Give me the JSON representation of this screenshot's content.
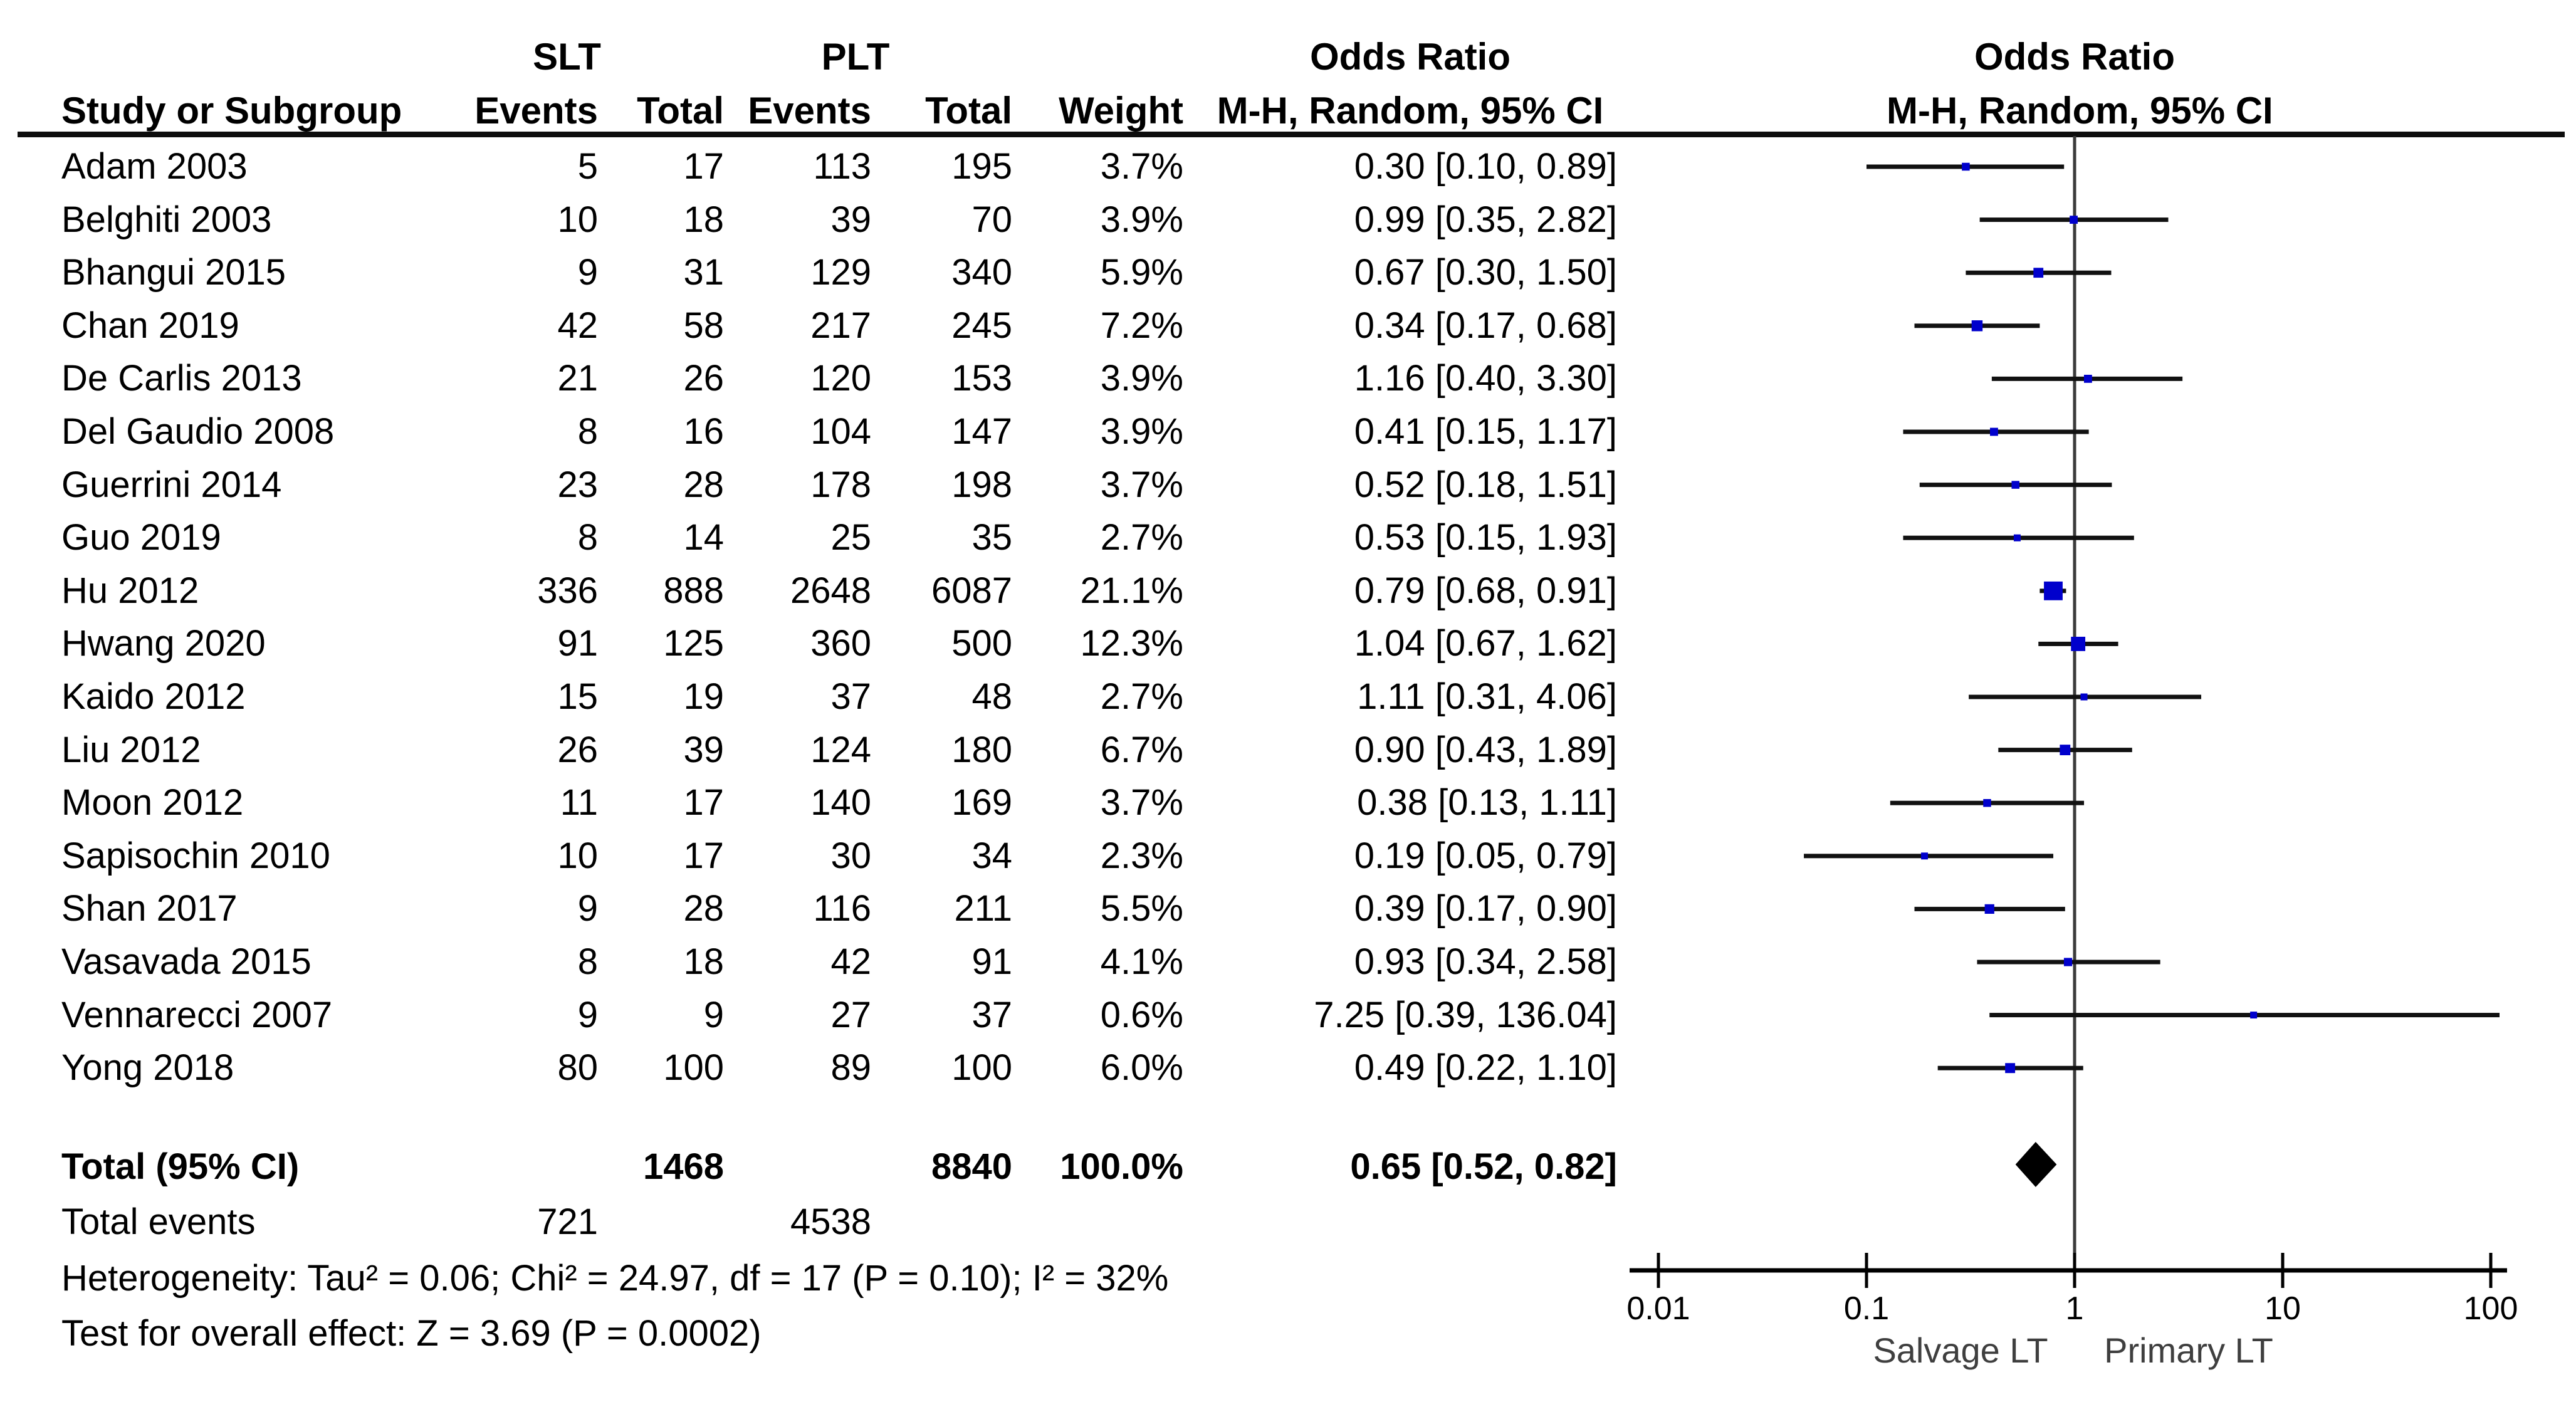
{
  "header": {
    "slt": "SLT",
    "plt": "PLT",
    "odds_ratio_left": "Odds Ratio",
    "odds_ratio_right": "Odds Ratio",
    "study": "Study or Subgroup",
    "events": "Events",
    "total": "Total",
    "events2": "Events",
    "total2": "Total",
    "weight": "Weight",
    "mh_left": "M-H, Random, 95% CI",
    "mh_right": "M-H, Random, 95% CI"
  },
  "rows": [
    {
      "study": "Adam 2003",
      "slt_events": "5",
      "slt_total": "17",
      "plt_events": "113",
      "plt_total": "195",
      "weight": "3.7%",
      "or_ci": "0.30 [0.10, 0.89]",
      "or": 0.3,
      "lo": 0.1,
      "hi": 0.89,
      "weight_val": 3.7
    },
    {
      "study": "Belghiti 2003",
      "slt_events": "10",
      "slt_total": "18",
      "plt_events": "39",
      "plt_total": "70",
      "weight": "3.9%",
      "or_ci": "0.99 [0.35, 2.82]",
      "or": 0.99,
      "lo": 0.35,
      "hi": 2.82,
      "weight_val": 3.9
    },
    {
      "study": "Bhangui 2015",
      "slt_events": "9",
      "slt_total": "31",
      "plt_events": "129",
      "plt_total": "340",
      "weight": "5.9%",
      "or_ci": "0.67 [0.30, 1.50]",
      "or": 0.67,
      "lo": 0.3,
      "hi": 1.5,
      "weight_val": 5.9
    },
    {
      "study": "Chan 2019",
      "slt_events": "42",
      "slt_total": "58",
      "plt_events": "217",
      "plt_total": "245",
      "weight": "7.2%",
      "or_ci": "0.34 [0.17, 0.68]",
      "or": 0.34,
      "lo": 0.17,
      "hi": 0.68,
      "weight_val": 7.2
    },
    {
      "study": "De Carlis 2013",
      "slt_events": "21",
      "slt_total": "26",
      "plt_events": "120",
      "plt_total": "153",
      "weight": "3.9%",
      "or_ci": "1.16 [0.40, 3.30]",
      "or": 1.16,
      "lo": 0.4,
      "hi": 3.3,
      "weight_val": 3.9
    },
    {
      "study": "Del Gaudio 2008",
      "slt_events": "8",
      "slt_total": "16",
      "plt_events": "104",
      "plt_total": "147",
      "weight": "3.9%",
      "or_ci": "0.41 [0.15, 1.17]",
      "or": 0.41,
      "lo": 0.15,
      "hi": 1.17,
      "weight_val": 3.9
    },
    {
      "study": "Guerrini 2014",
      "slt_events": "23",
      "slt_total": "28",
      "plt_events": "178",
      "plt_total": "198",
      "weight": "3.7%",
      "or_ci": "0.52 [0.18, 1.51]",
      "or": 0.52,
      "lo": 0.18,
      "hi": 1.51,
      "weight_val": 3.7
    },
    {
      "study": "Guo 2019",
      "slt_events": "8",
      "slt_total": "14",
      "plt_events": "25",
      "plt_total": "35",
      "weight": "2.7%",
      "or_ci": "0.53 [0.15, 1.93]",
      "or": 0.53,
      "lo": 0.15,
      "hi": 1.93,
      "weight_val": 2.7
    },
    {
      "study": "Hu 2012",
      "slt_events": "336",
      "slt_total": "888",
      "plt_events": "2648",
      "plt_total": "6087",
      "weight": "21.1%",
      "or_ci": "0.79 [0.68, 0.91]",
      "or": 0.79,
      "lo": 0.68,
      "hi": 0.91,
      "weight_val": 21.1
    },
    {
      "study": "Hwang 2020",
      "slt_events": "91",
      "slt_total": "125",
      "plt_events": "360",
      "plt_total": "500",
      "weight": "12.3%",
      "or_ci": "1.04 [0.67, 1.62]",
      "or": 1.04,
      "lo": 0.67,
      "hi": 1.62,
      "weight_val": 12.3
    },
    {
      "study": "Kaido 2012",
      "slt_events": "15",
      "slt_total": "19",
      "plt_events": "37",
      "plt_total": "48",
      "weight": "2.7%",
      "or_ci": "1.11 [0.31, 4.06]",
      "or": 1.11,
      "lo": 0.31,
      "hi": 4.06,
      "weight_val": 2.7
    },
    {
      "study": "Liu 2012",
      "slt_events": "26",
      "slt_total": "39",
      "plt_events": "124",
      "plt_total": "180",
      "weight": "6.7%",
      "or_ci": "0.90 [0.43, 1.89]",
      "or": 0.9,
      "lo": 0.43,
      "hi": 1.89,
      "weight_val": 6.7
    },
    {
      "study": "Moon 2012",
      "slt_events": "11",
      "slt_total": "17",
      "plt_events": "140",
      "plt_total": "169",
      "weight": "3.7%",
      "or_ci": "0.38 [0.13, 1.11]",
      "or": 0.38,
      "lo": 0.13,
      "hi": 1.11,
      "weight_val": 3.7
    },
    {
      "study": "Sapisochin 2010",
      "slt_events": "10",
      "slt_total": "17",
      "plt_events": "30",
      "plt_total": "34",
      "weight": "2.3%",
      "or_ci": "0.19 [0.05, 0.79]",
      "or": 0.19,
      "lo": 0.05,
      "hi": 0.79,
      "weight_val": 2.3
    },
    {
      "study": "Shan 2017",
      "slt_events": "9",
      "slt_total": "28",
      "plt_events": "116",
      "plt_total": "211",
      "weight": "5.5%",
      "or_ci": "0.39 [0.17, 0.90]",
      "or": 0.39,
      "lo": 0.17,
      "hi": 0.9,
      "weight_val": 5.5
    },
    {
      "study": "Vasavada 2015",
      "slt_events": "8",
      "slt_total": "18",
      "plt_events": "42",
      "plt_total": "91",
      "weight": "4.1%",
      "or_ci": "0.93 [0.34, 2.58]",
      "or": 0.93,
      "lo": 0.34,
      "hi": 2.58,
      "weight_val": 4.1
    },
    {
      "study": "Vennarecci 2007",
      "slt_events": "9",
      "slt_total": "9",
      "plt_events": "27",
      "plt_total": "37",
      "weight": "0.6%",
      "or_ci": "7.25 [0.39, 136.04]",
      "or": 7.25,
      "lo": 0.39,
      "hi": 136.04,
      "weight_val": 0.6
    },
    {
      "study": "Yong 2018",
      "slt_events": "80",
      "slt_total": "100",
      "plt_events": "89",
      "plt_total": "100",
      "weight": "6.0%",
      "or_ci": "0.49 [0.22, 1.10]",
      "or": 0.49,
      "lo": 0.22,
      "hi": 1.1,
      "weight_val": 6.0
    }
  ],
  "totals": {
    "label": "Total (95% CI)",
    "slt_total": "1468",
    "plt_total": "8840",
    "weight": "100.0%",
    "or_ci": "0.65 [0.52, 0.82]",
    "or": 0.65,
    "lo": 0.52,
    "hi": 0.82
  },
  "total_events": {
    "label": "Total events",
    "slt_events": "721",
    "plt_events": "4538"
  },
  "stats": {
    "heterogeneity": "Heterogeneity: Tau² = 0.06; Chi² = 24.97, df = 17 (P = 0.10); I² = 32%",
    "overall_effect": "Test for overall effect: Z = 3.69 (P = 0.0002)"
  },
  "axis": {
    "ticks": [
      "0.01",
      "0.1",
      "1",
      "10",
      "100"
    ],
    "tick_values": [
      0.01,
      0.1,
      1,
      10,
      100
    ],
    "left_label": "Salvage LT",
    "right_label": "Primary LT"
  },
  "colors": {
    "marker": "#0000cc",
    "ci_line": "#111111",
    "diamond": "#000000",
    "axis": "#000000",
    "no_effect_line": "#3a3a3a",
    "rule": "#0d0d0d",
    "direction_label": "#3f3f3f"
  },
  "chart_data": {
    "type": "scatter",
    "title": "Forest plot: Odds Ratio, M-H, Random, 95% CI (SLT vs PLT)",
    "x_scale": "log10",
    "xlim": [
      0.01,
      100
    ],
    "x_ticks": [
      0.01,
      0.1,
      1,
      10,
      100
    ],
    "xlabel": "Salvage LT (left) / Primary LT (right)",
    "grid": false,
    "legend_position": "none",
    "categories": [
      "Adam 2003",
      "Belghiti 2003",
      "Bhangui 2015",
      "Chan 2019",
      "De Carlis 2013",
      "Del Gaudio 2008",
      "Guerrini 2014",
      "Guo 2019",
      "Hu 2012",
      "Hwang 2020",
      "Kaido 2012",
      "Liu 2012",
      "Moon 2012",
      "Sapisochin 2010",
      "Shan 2017",
      "Vasavada 2015",
      "Vennarecci 2007",
      "Yong 2018"
    ],
    "series": [
      {
        "name": "Odds Ratio",
        "values": [
          0.3,
          0.99,
          0.67,
          0.34,
          1.16,
          0.41,
          0.52,
          0.53,
          0.79,
          1.04,
          1.11,
          0.9,
          0.38,
          0.19,
          0.39,
          0.93,
          7.25,
          0.49
        ]
      },
      {
        "name": "CI lower",
        "values": [
          0.1,
          0.35,
          0.3,
          0.17,
          0.4,
          0.15,
          0.18,
          0.15,
          0.68,
          0.67,
          0.31,
          0.43,
          0.13,
          0.05,
          0.17,
          0.34,
          0.39,
          0.22
        ]
      },
      {
        "name": "CI upper",
        "values": [
          0.89,
          2.82,
          1.5,
          0.68,
          3.3,
          1.17,
          1.51,
          1.93,
          0.91,
          1.62,
          4.06,
          1.89,
          1.11,
          0.79,
          0.9,
          2.58,
          136.04,
          1.1
        ]
      },
      {
        "name": "Weight %",
        "values": [
          3.7,
          3.9,
          5.9,
          7.2,
          3.9,
          3.9,
          3.7,
          2.7,
          21.1,
          12.3,
          2.7,
          6.7,
          3.7,
          2.3,
          5.5,
          4.1,
          0.6,
          6.0
        ]
      },
      {
        "name": "SLT events",
        "values": [
          5,
          10,
          9,
          42,
          21,
          8,
          23,
          8,
          336,
          91,
          15,
          26,
          11,
          10,
          9,
          8,
          9,
          80
        ]
      },
      {
        "name": "SLT total",
        "values": [
          17,
          18,
          31,
          58,
          26,
          16,
          28,
          14,
          888,
          125,
          19,
          39,
          17,
          17,
          28,
          18,
          9,
          100
        ]
      },
      {
        "name": "PLT events",
        "values": [
          113,
          39,
          129,
          217,
          120,
          104,
          178,
          25,
          2648,
          360,
          37,
          124,
          140,
          30,
          116,
          42,
          27,
          89
        ]
      },
      {
        "name": "PLT total",
        "values": [
          195,
          70,
          340,
          245,
          153,
          147,
          198,
          35,
          6087,
          500,
          48,
          180,
          169,
          34,
          211,
          91,
          37,
          100
        ]
      }
    ],
    "summary": {
      "label": "Total (95% CI)",
      "or": 0.65,
      "ci": [
        0.52,
        0.82
      ],
      "slt_total": 1468,
      "plt_total": 8840,
      "weight": "100.0%",
      "total_events_slt": 721,
      "total_events_plt": 4538
    }
  }
}
